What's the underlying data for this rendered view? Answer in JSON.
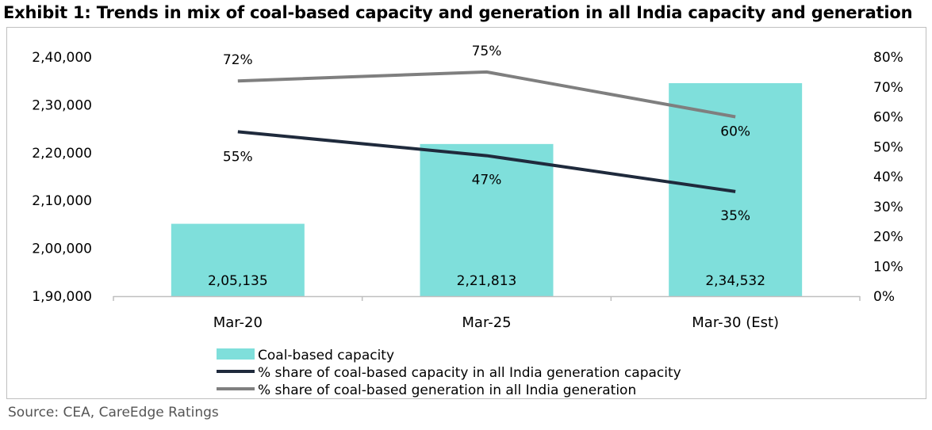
{
  "title": "Exhibit 1: Trends in mix of coal-based capacity and generation in all India capacity and generation",
  "source": "Source: CEA, CareEdge Ratings",
  "colors": {
    "bar": "#7fdfdb",
    "capacity_line": "#1f2a3c",
    "generation_line": "#7f7f7f",
    "axis": "#bfbfbf",
    "text": "#000000"
  },
  "chart_data": {
    "type": "bar+line",
    "categories": [
      "Mar-20",
      "Mar-25",
      "Mar-30 (Est)"
    ],
    "bars": {
      "name": "Coal-based capacity",
      "values": [
        205135,
        221813,
        234532
      ],
      "labels": [
        "2,05,135",
        "2,21,813",
        "2,34,532"
      ]
    },
    "lines": [
      {
        "name": "% share of coal-based capacity in all India generation capacity",
        "values": [
          55,
          47,
          35
        ],
        "labels": [
          "55%",
          "47%",
          "35%"
        ]
      },
      {
        "name": "% share of coal-based generation in all India generation",
        "values": [
          72,
          75,
          60
        ],
        "labels": [
          "72%",
          "75%",
          "60%"
        ]
      }
    ],
    "y_left": {
      "min": 190000,
      "max": 240000,
      "step": 10000,
      "tick_labels": [
        "1,90,000",
        "2,00,000",
        "2,10,000",
        "2,20,000",
        "2,30,000",
        "2,40,000"
      ]
    },
    "y_right": {
      "min": 0,
      "max": 80,
      "step": 10,
      "tick_labels": [
        "0%",
        "10%",
        "20%",
        "30%",
        "40%",
        "50%",
        "60%",
        "70%",
        "80%"
      ]
    },
    "legend_position": "bottom",
    "grid": false
  }
}
